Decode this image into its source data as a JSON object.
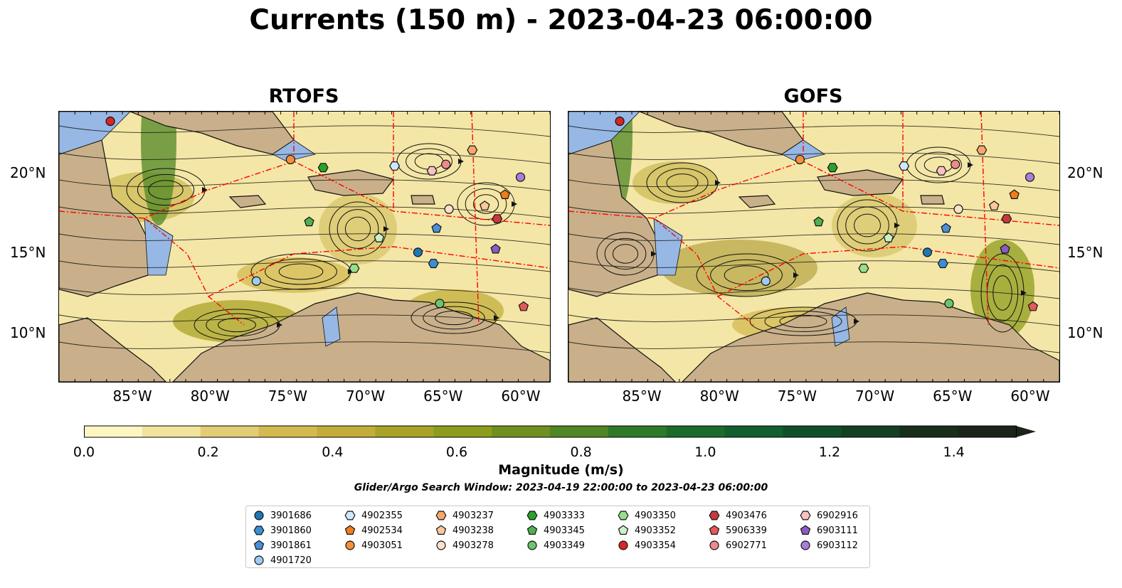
{
  "title": "Currents (150 m) - 2023-04-23 06:00:00",
  "panels": [
    {
      "title": "RTOFS"
    },
    {
      "title": "GOFS"
    }
  ],
  "axes": {
    "lon_ticks": [
      "85°W",
      "80°W",
      "75°W",
      "70°W",
      "65°W",
      "60°W"
    ],
    "lat_ticks": [
      "20°N",
      "15°N",
      "10°N"
    ]
  },
  "colorbar": {
    "label": "Magnitude (m/s)",
    "ticks": [
      "0.0",
      "0.2",
      "0.4",
      "0.6",
      "0.8",
      "1.0",
      "1.2",
      "1.4"
    ],
    "range": [
      0,
      1.5
    ],
    "colors": [
      "#fdf6c3",
      "#f1e29c",
      "#e2cd74",
      "#d3ba50",
      "#c2ad3a",
      "#a9a326",
      "#8e9c1c",
      "#6f9020",
      "#4f8724",
      "#2e7a28",
      "#1b6b2d",
      "#125e2e",
      "#0f4f28",
      "#143f23",
      "#182e1c",
      "#1a2418"
    ]
  },
  "search_window": "Glider/Argo Search Window: 2023-04-19 22:00:00 to 2023-04-23 06:00:00",
  "colors": {
    "land": "#c9b08a",
    "water": "#97b8e4",
    "eez": "#ff0000"
  },
  "floats": [
    {
      "id": "3901686",
      "marker": "circle",
      "color": "#1f77b4",
      "lon": -66.5,
      "lat": 15.1
    },
    {
      "id": "3901860",
      "marker": "hexagon",
      "color": "#3b8fd0",
      "lon": -65.5,
      "lat": 14.4
    },
    {
      "id": "3901861",
      "marker": "pentagon",
      "color": "#4a90d9",
      "lon": -65.3,
      "lat": 16.6
    },
    {
      "id": "4901720",
      "marker": "circle",
      "color": "#9ecbf2",
      "lon": -76.9,
      "lat": 13.3
    },
    {
      "id": "4902355",
      "marker": "hexagon",
      "color": "#cfe8fb",
      "lon": -68.0,
      "lat": 20.5
    },
    {
      "id": "4902534",
      "marker": "pentagon",
      "color": "#f07d1a",
      "lon": -60.9,
      "lat": 18.7
    },
    {
      "id": "4903051",
      "marker": "circle",
      "color": "#f2913a",
      "lon": -74.7,
      "lat": 20.9
    },
    {
      "id": "4903237",
      "marker": "hexagon",
      "color": "#f6a86a",
      "lon": -63.0,
      "lat": 21.5
    },
    {
      "id": "4903238",
      "marker": "pentagon",
      "color": "#fac89a",
      "lon": -62.2,
      "lat": 18.0
    },
    {
      "id": "4903278",
      "marker": "circle",
      "color": "#fde0c8",
      "lon": -64.5,
      "lat": 17.8
    },
    {
      "id": "4903333",
      "marker": "hexagon",
      "color": "#2ca02c",
      "lon": -72.6,
      "lat": 20.4
    },
    {
      "id": "4903345",
      "marker": "pentagon",
      "color": "#4fb04f",
      "lon": -73.5,
      "lat": 17.0
    },
    {
      "id": "4903349",
      "marker": "circle",
      "color": "#6cc46c",
      "lon": -65.1,
      "lat": 11.9
    },
    {
      "id": "4903350",
      "marker": "hexagon",
      "color": "#98df8a",
      "lon": -70.6,
      "lat": 14.1
    },
    {
      "id": "4903352",
      "marker": "pentagon",
      "color": "#cdf0c6",
      "lon": -69.0,
      "lat": 16.0
    },
    {
      "id": "4903354",
      "marker": "circle",
      "color": "#d62728",
      "lon": -86.3,
      "lat": 23.3
    },
    {
      "id": "4903476",
      "marker": "hexagon",
      "color": "#c73a3a",
      "lon": -61.4,
      "lat": 17.2
    },
    {
      "id": "5906339",
      "marker": "pentagon",
      "color": "#e35a5a",
      "lon": -59.7,
      "lat": 11.7
    },
    {
      "id": "6902771",
      "marker": "circle",
      "color": "#f08a8a",
      "lon": -64.7,
      "lat": 20.6
    },
    {
      "id": "6902916",
      "marker": "hexagon",
      "color": "#f7c2c2",
      "lon": -65.6,
      "lat": 20.2
    },
    {
      "id": "6903111",
      "marker": "pentagon",
      "color": "#8a5cc2",
      "lon": -61.5,
      "lat": 15.3
    },
    {
      "id": "6903112",
      "marker": "circle",
      "color": "#a77ed8",
      "lon": -59.9,
      "lat": 19.8
    }
  ]
}
